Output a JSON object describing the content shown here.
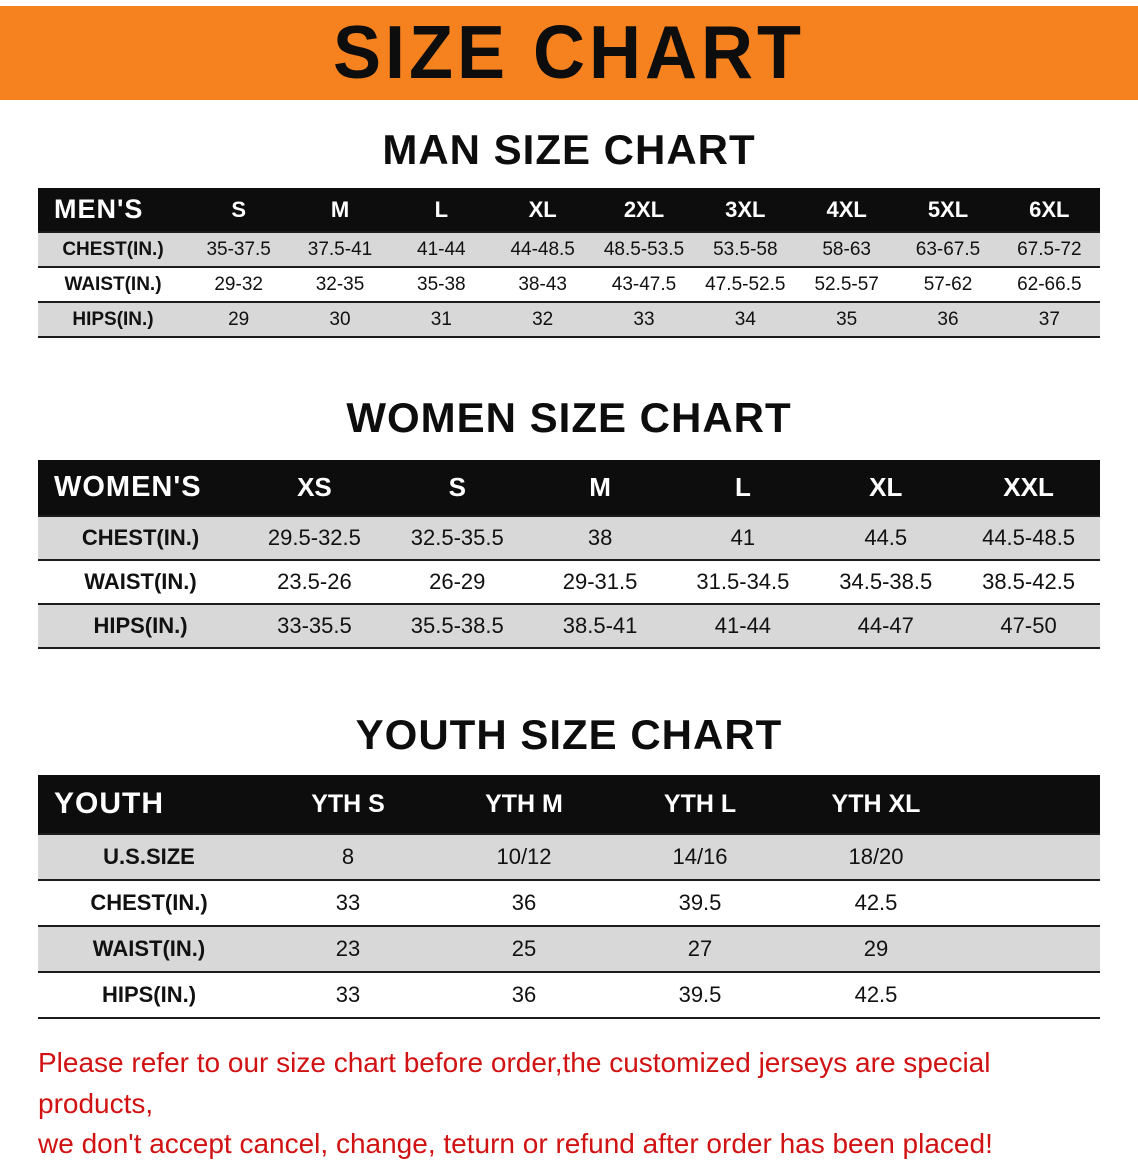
{
  "banner": {
    "title": "SIZE CHART",
    "bg_color": "#F5821F"
  },
  "colors": {
    "header_bar": "#0d0d0d",
    "row_stripe": "#d8d8d8",
    "disclaimer_red": "#d11212"
  },
  "sections": [
    {
      "id": "men",
      "heading": "MAN SIZE CHART",
      "table": {
        "header": [
          "MEN'S",
          "S",
          "M",
          "L",
          "XL",
          "2XL",
          "3XL",
          "4XL",
          "5XL",
          "6XL"
        ],
        "rows": [
          [
            "CHEST(IN.)",
            "35-37.5",
            "37.5-41",
            "41-44",
            "44-48.5",
            "48.5-53.5",
            "53.5-58",
            "58-63",
            "63-67.5",
            "67.5-72"
          ],
          [
            "WAIST(IN.)",
            "29-32",
            "32-35",
            "35-38",
            "38-43",
            "43-47.5",
            "47.5-52.5",
            "52.5-57",
            "57-62",
            "62-66.5"
          ],
          [
            "HIPS(IN.)",
            "29",
            "30",
            "31",
            "32",
            "33",
            "34",
            "35",
            "36",
            "37"
          ]
        ]
      }
    },
    {
      "id": "women",
      "heading": "WOMEN SIZE CHART",
      "table": {
        "header": [
          "WOMEN'S",
          "XS",
          "S",
          "M",
          "L",
          "XL",
          "XXL"
        ],
        "rows": [
          [
            "CHEST(IN.)",
            "29.5-32.5",
            "32.5-35.5",
            "38",
            "41",
            "44.5",
            "44.5-48.5"
          ],
          [
            "WAIST(IN.)",
            "23.5-26",
            "26-29",
            "29-31.5",
            "31.5-34.5",
            "34.5-38.5",
            "38.5-42.5"
          ],
          [
            "HIPS(IN.)",
            "33-35.5",
            "35.5-38.5",
            "38.5-41",
            "41-44",
            "44-47",
            "47-50"
          ]
        ]
      }
    },
    {
      "id": "youth",
      "heading": "YOUTH SIZE CHART",
      "table": {
        "header": [
          "YOUTH",
          "YTH S",
          "YTH M",
          "YTH L",
          "YTH XL"
        ],
        "rows": [
          [
            "U.S.SIZE",
            "8",
            "10/12",
            "14/16",
            "18/20"
          ],
          [
            "CHEST(IN.)",
            "33",
            "36",
            "39.5",
            "42.5"
          ],
          [
            "WAIST(IN.)",
            "23",
            "25",
            "27",
            "29"
          ],
          [
            "HIPS(IN.)",
            "33",
            "36",
            "39.5",
            "42.5"
          ]
        ]
      }
    }
  ],
  "disclaimer": {
    "line1": "Please refer to our size chart before order,the customized jerseys are special products,",
    "line2": "we don't accept cancel, change, teturn or refund after order has been placed!"
  }
}
